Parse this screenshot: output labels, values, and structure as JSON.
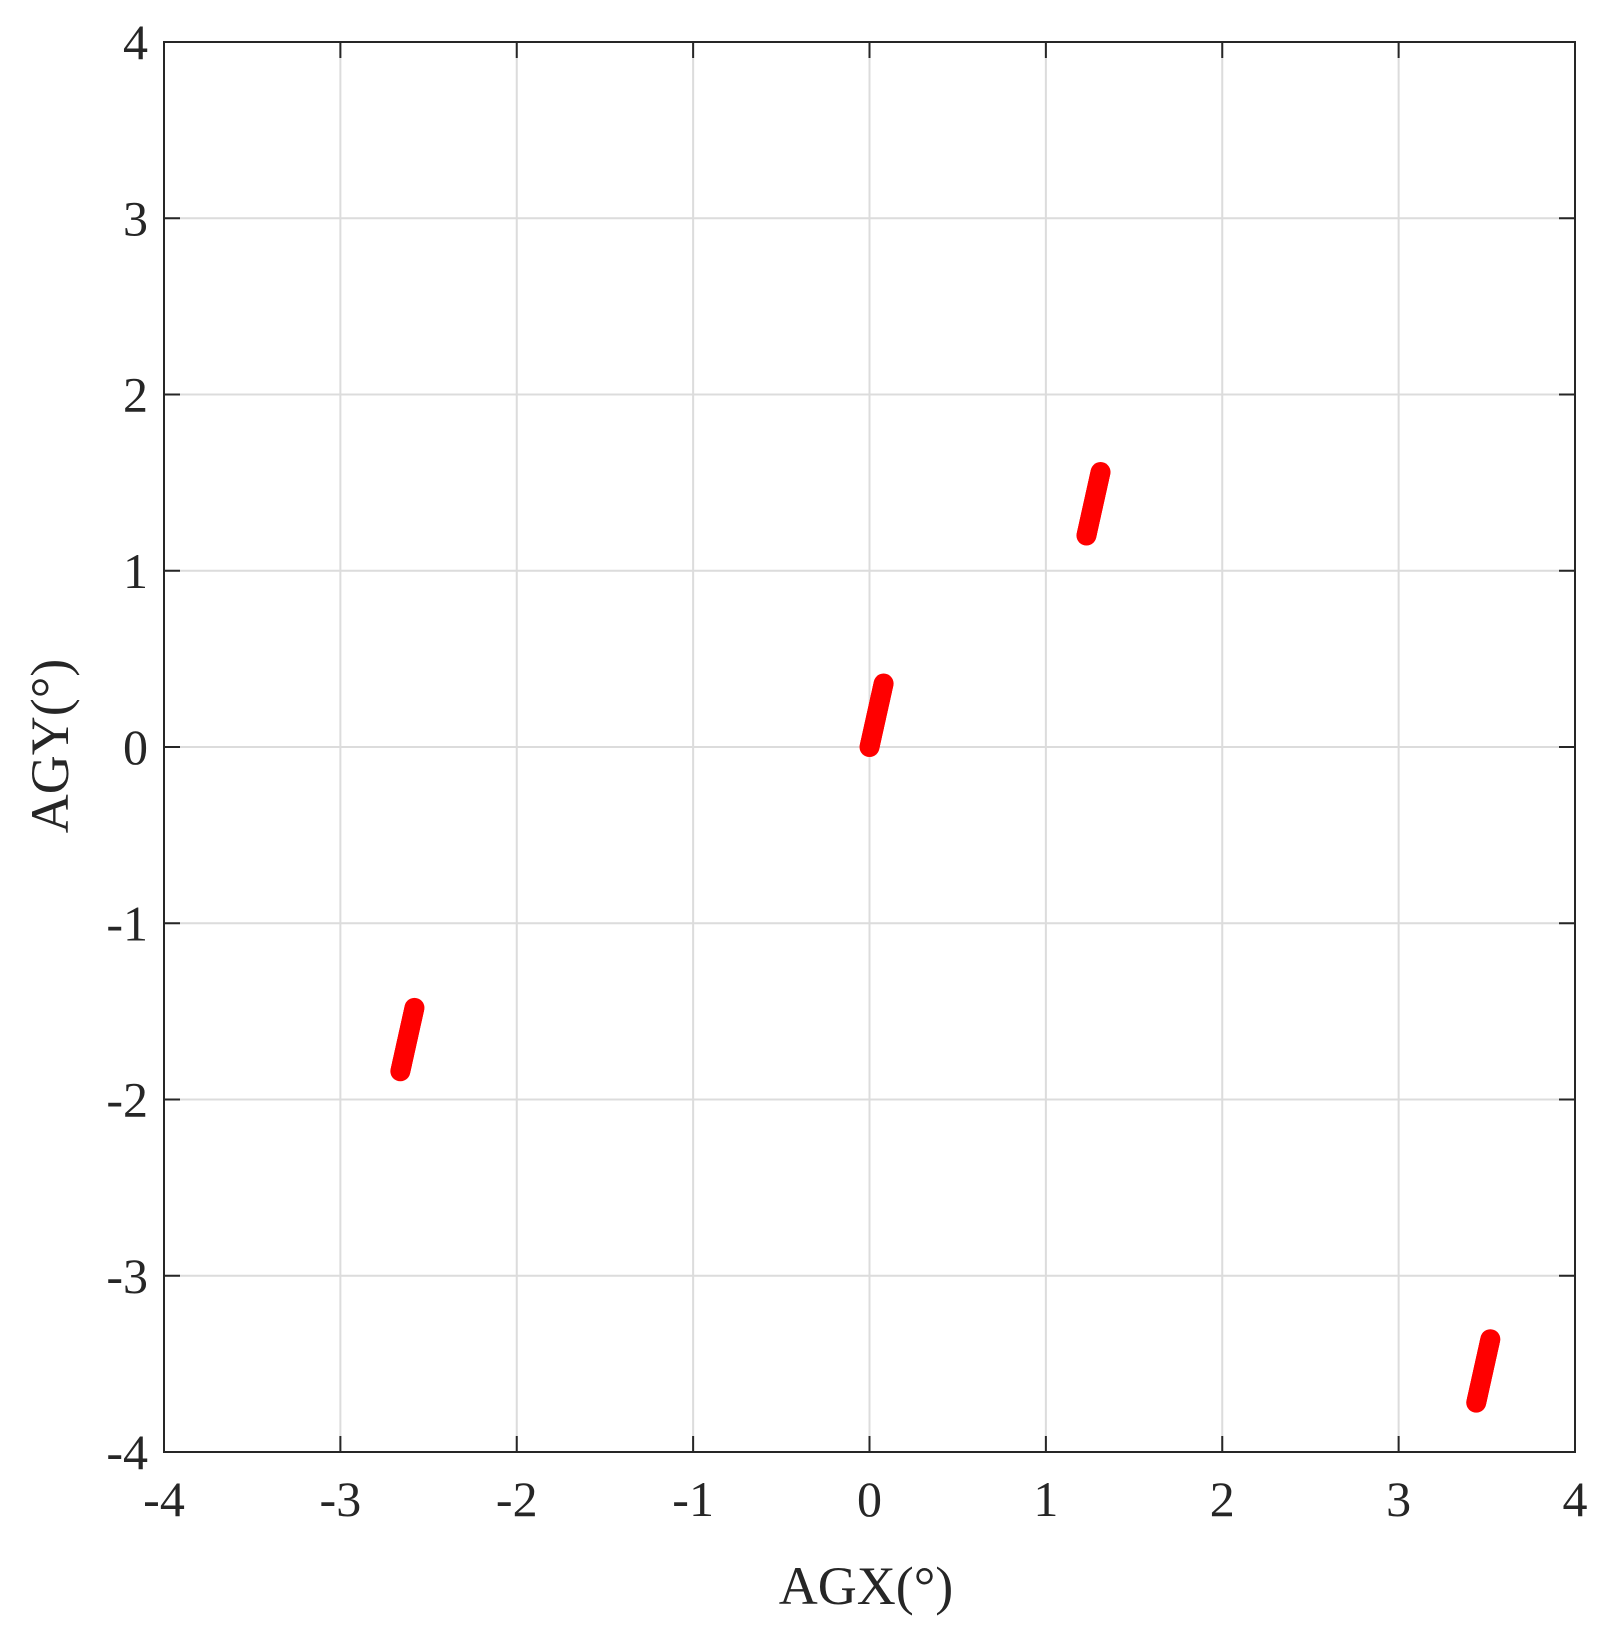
{
  "chart_data": {
    "type": "scatter",
    "xlabel": "AGX(°)",
    "ylabel": "AGY(°)",
    "xlim": [
      -4,
      4
    ],
    "ylim": [
      -4,
      4
    ],
    "xticks": [
      -4,
      -3,
      -2,
      -1,
      0,
      1,
      2,
      3,
      4
    ],
    "yticks": [
      -4,
      -3,
      -2,
      -1,
      0,
      1,
      2,
      3,
      4
    ],
    "xtick_labels": [
      "-4",
      "-3",
      "-2",
      "-1",
      "0",
      "1",
      "2",
      "3",
      "4"
    ],
    "ytick_labels": [
      "-4",
      "-3",
      "-2",
      "-1",
      "0",
      "1",
      "2",
      "3",
      "4"
    ],
    "grid": true,
    "box": true,
    "marker_color": "#ff0000",
    "series": [
      {
        "clusters": [
          {
            "x": [
              -2.66,
              -2.58
            ],
            "y": [
              -1.84,
              -1.48
            ]
          },
          {
            "x": [
              0.0,
              0.08
            ],
            "y": [
              0.0,
              0.36
            ]
          },
          {
            "x": [
              1.23,
              1.31
            ],
            "y": [
              1.2,
              1.56
            ]
          },
          {
            "x": [
              3.44,
              3.52
            ],
            "y": [
              -3.72,
              -3.36
            ]
          }
        ]
      }
    ]
  }
}
